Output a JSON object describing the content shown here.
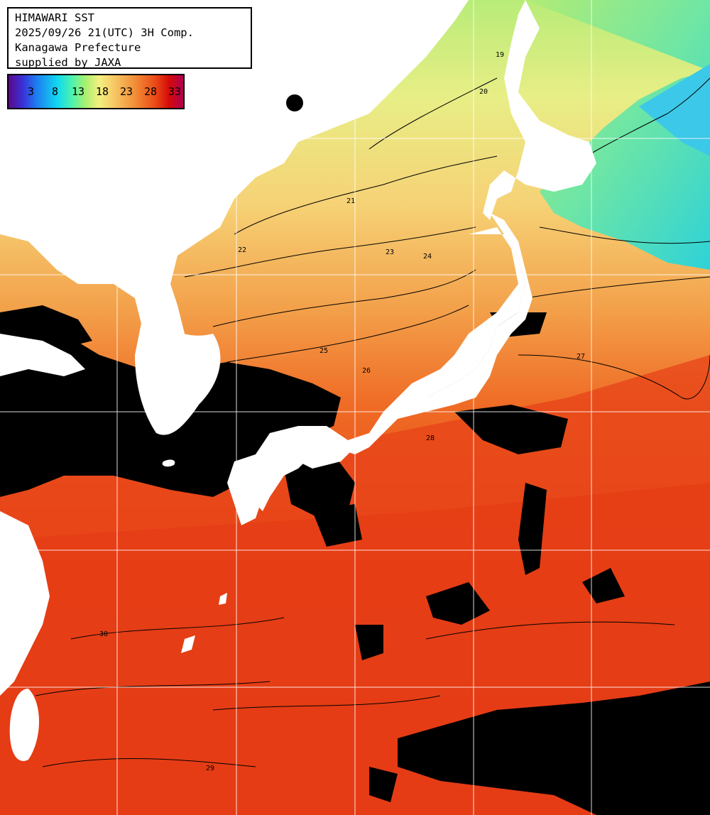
{
  "title": {
    "line1": "HIMAWARI SST",
    "line2": "2025/09/26 21(UTC) 3H Comp.",
    "line3": "Kanagawa Prefecture",
    "line4": "supplied by JAXA"
  },
  "legend": {
    "ticks": [
      "3",
      "8",
      "13",
      "18",
      "23",
      "28",
      "33"
    ]
  },
  "contour_labels": [
    "19",
    "20",
    "21",
    "22",
    "23",
    "24",
    "25",
    "26",
    "27",
    "28",
    "29",
    "30"
  ],
  "colors": {
    "land": "#ffffff",
    "cloud": "#000000",
    "grid": "#ffffff",
    "contour": "#000000"
  }
}
